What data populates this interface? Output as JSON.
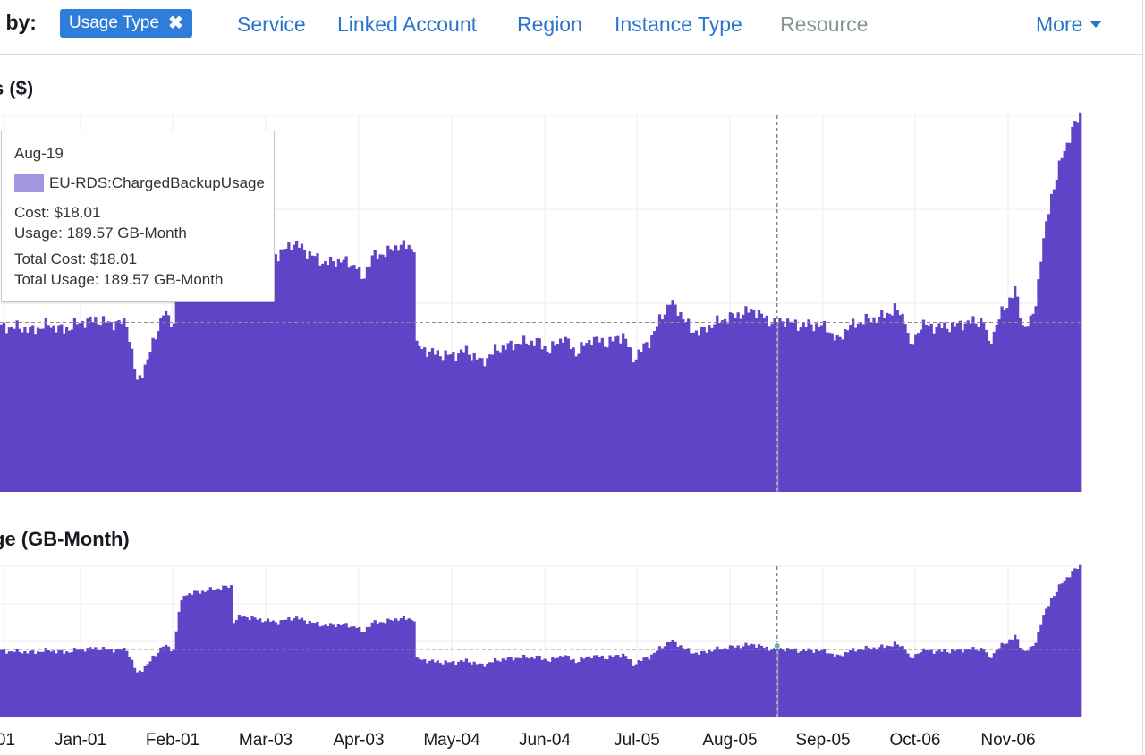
{
  "group_by": {
    "label": "p by:",
    "selected": "Usage Type",
    "options": [
      "Service",
      "Linked Account",
      "Region",
      "Instance Type",
      "Resource"
    ],
    "more": "More"
  },
  "tooltip": {
    "date": "Aug-19",
    "series": "EU-RDS:ChargedBackupUsage",
    "cost": "Cost: $18.01",
    "usage": "Usage: 189.57 GB-Month",
    "total_cost": "Total Cost: $18.01",
    "total_usage": "Total Usage: 189.57 GB-Month"
  },
  "colors": {
    "bar": "#6044c8",
    "highlight_bar": "#a89de0",
    "link": "#2a75c9",
    "chip": "#2f7dd8"
  },
  "chart_data": [
    {
      "type": "bar",
      "title": "s ($)",
      "series_name": "EU-RDS:ChargedBackupUsage",
      "x_ticks": [
        "01",
        "Jan-01",
        "Feb-01",
        "Mar-03",
        "Apr-03",
        "May-04",
        "Jun-04",
        "Jul-05",
        "Aug-05",
        "Sep-05",
        "Oct-06",
        "Nov-06"
      ],
      "ylim": [
        0,
        40
      ],
      "average_line": 18.0,
      "highlight": {
        "date": "Aug-19",
        "value": 18.01
      },
      "control_points": [
        [
          0,
          17.5
        ],
        [
          6,
          17.5
        ],
        [
          12,
          17.2
        ],
        [
          18,
          17.8
        ],
        [
          24,
          17.2
        ],
        [
          30,
          18.0
        ],
        [
          36,
          18.3
        ],
        [
          42,
          17.9
        ],
        [
          48,
          18.0
        ],
        [
          52,
          11.6
        ],
        [
          56,
          14.0
        ],
        [
          60,
          17.5
        ],
        [
          62,
          19.0
        ],
        [
          64,
          18.5
        ],
        [
          66,
          17.8
        ],
        [
          68,
          28.0
        ],
        [
          70,
          32.5
        ],
        [
          78,
          33.5
        ],
        [
          86,
          34.5
        ],
        [
          88,
          34.8
        ],
        [
          89,
          25.5
        ],
        [
          92,
          26.8
        ],
        [
          100,
          25.8
        ],
        [
          106,
          25.2
        ],
        [
          112,
          26.5
        ],
        [
          118,
          25.3
        ],
        [
          124,
          24.3
        ],
        [
          130,
          24.6
        ],
        [
          136,
          24.0
        ],
        [
          138,
          22.5
        ],
        [
          142,
          25.0
        ],
        [
          148,
          25.5
        ],
        [
          152,
          26.2
        ],
        [
          158,
          26.0
        ],
        [
          159,
          15.5
        ],
        [
          165,
          14.8
        ],
        [
          172,
          14.5
        ],
        [
          178,
          15.0
        ],
        [
          184,
          13.8
        ],
        [
          190,
          15.2
        ],
        [
          198,
          15.8
        ],
        [
          205,
          16.0
        ],
        [
          210,
          15.0
        ],
        [
          215,
          16.5
        ],
        [
          220,
          14.8
        ],
        [
          226,
          16.3
        ],
        [
          232,
          15.8
        ],
        [
          238,
          16.7
        ],
        [
          242,
          14.2
        ],
        [
          248,
          16.0
        ],
        [
          252,
          18.2
        ],
        [
          256,
          20.2
        ],
        [
          260,
          19.0
        ],
        [
          264,
          17.2
        ],
        [
          268,
          17.0
        ],
        [
          272,
          17.8
        ],
        [
          278,
          18.5
        ],
        [
          284,
          19.0
        ],
        [
          288,
          19.4
        ],
        [
          292,
          18.5
        ],
        [
          296,
          18.0
        ],
        [
          300,
          18.2
        ],
        [
          305,
          17.7
        ],
        [
          310,
          17.8
        ],
        [
          316,
          17.5
        ],
        [
          320,
          16.0
        ],
        [
          324,
          17.5
        ],
        [
          330,
          18.2
        ],
        [
          336,
          18.5
        ],
        [
          342,
          19.4
        ],
        [
          346,
          18.5
        ],
        [
          348,
          15.2
        ],
        [
          352,
          17.8
        ],
        [
          358,
          17.5
        ],
        [
          364,
          17.6
        ],
        [
          370,
          18.0
        ],
        [
          376,
          18.2
        ],
        [
          378,
          15.6
        ],
        [
          382,
          18.5
        ],
        [
          386,
          20.5
        ],
        [
          388,
          21.5
        ],
        [
          391,
          17.7
        ],
        [
          394,
          18.0
        ],
        [
          396,
          20.0
        ],
        [
          398,
          25.0
        ],
        [
          402,
          31.5
        ],
        [
          406,
          35.5
        ],
        [
          410,
          38.5
        ],
        [
          413,
          40.0
        ]
      ]
    },
    {
      "type": "bar",
      "title": "ge (GB-Month)",
      "series_name": "EU-RDS:ChargedBackupUsage",
      "x_ticks": [
        "01",
        "Jan-01",
        "Feb-01",
        "Mar-03",
        "Apr-03",
        "May-04",
        "Jun-04",
        "Jul-05",
        "Aug-05",
        "Sep-05",
        "Oct-06",
        "Nov-06"
      ],
      "ylim": [
        0,
        400
      ],
      "average_line": 180,
      "highlight": {
        "date": "Aug-19",
        "value": 189.57
      }
    }
  ]
}
